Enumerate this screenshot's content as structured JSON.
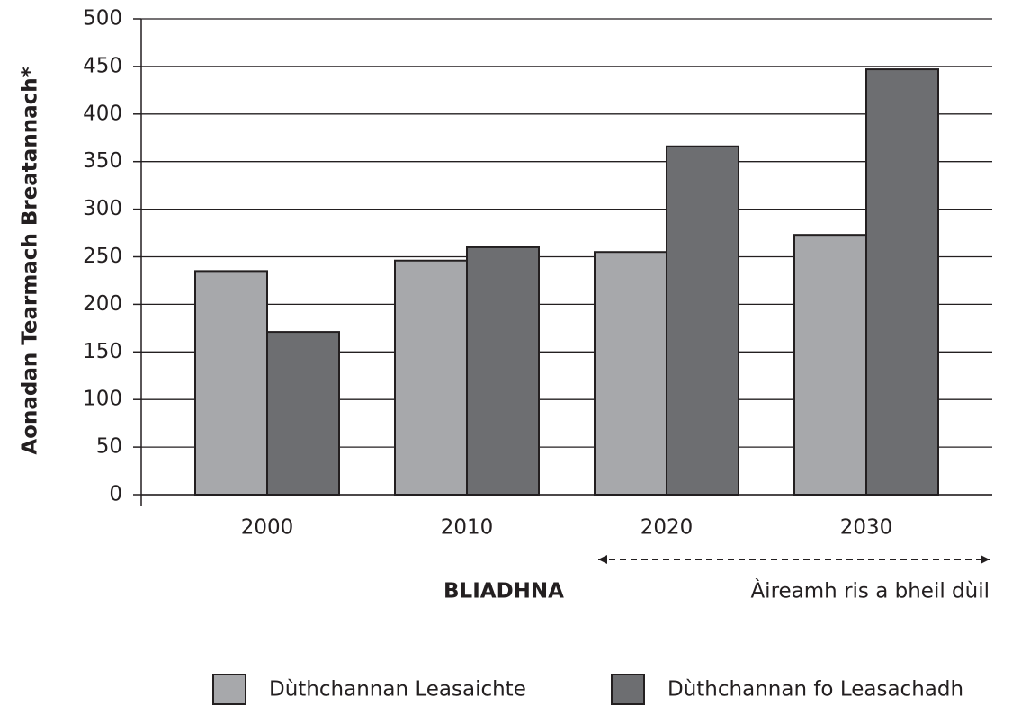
{
  "chart_data": {
    "type": "bar",
    "y_label": "Aonadan Tearmach Breatannach*",
    "x_label": "BLIADHNA",
    "annotation": "Àireamh ris a bheil dùil",
    "categories": [
      "2000",
      "2010",
      "2020",
      "2030"
    ],
    "series": [
      {
        "name": "Dùthchannan Leasaichte",
        "color": "#a7a8ab",
        "values": [
          235,
          246,
          255,
          273
        ]
      },
      {
        "name": "Dùthchannan fo Leasachadh",
        "color": "#6d6e71",
        "values": [
          171,
          260,
          366,
          447
        ]
      }
    ],
    "ylim": [
      0,
      500
    ],
    "yticks": [
      0,
      50,
      100,
      150,
      200,
      250,
      300,
      350,
      400,
      450,
      500
    ],
    "grid": true,
    "legend": "bottom"
  }
}
